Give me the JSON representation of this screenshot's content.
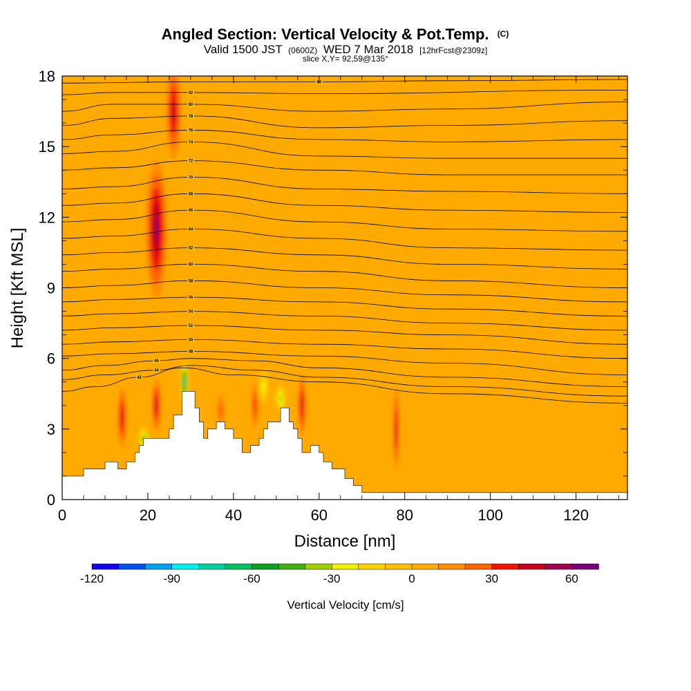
{
  "chart_data": {
    "type": "contour",
    "title": "Angled Section: Vertical Velocity & Pot.Temp.",
    "title_mark": "(C)",
    "subtitle_parts": [
      "Valid 1500 JST",
      "(0600Z)",
      "WED 7 Mar 2018",
      "[12hrFcst@2309z]"
    ],
    "slice_label": "slice X,Y= 92,59@135°",
    "xlabel": "Distance [nm]",
    "ylabel": "Height [Kft MSL]",
    "xlim": [
      0,
      132
    ],
    "ylim": [
      0,
      18
    ],
    "x_ticks": [
      0,
      20,
      40,
      60,
      80,
      100,
      120
    ],
    "y_ticks": [
      0,
      3,
      6,
      9,
      12,
      15,
      18
    ],
    "colorbar": {
      "label": "Vertical Velocity [cm/s]",
      "tick_values": [
        -120,
        -90,
        -60,
        -30,
        0,
        30,
        60
      ],
      "levels": [
        -120,
        -110,
        -100,
        -90,
        -80,
        -70,
        -60,
        -50,
        -40,
        -30,
        -20,
        -10,
        0,
        10,
        20,
        30,
        40,
        50,
        60,
        70
      ],
      "colors": [
        "#1400f0",
        "#0050f0",
        "#00a0f0",
        "#00f0f0",
        "#00d0a0",
        "#00c060",
        "#10a020",
        "#40b010",
        "#a0d000",
        "#f0f000",
        "#ffd200",
        "#ffbe00",
        "#ffaa00",
        "#ff8c00",
        "#ff6400",
        "#f01400",
        "#c8001e",
        "#a00050",
        "#780078"
      ]
    },
    "terrain": [
      [
        0,
        1
      ],
      [
        5,
        1
      ],
      [
        5,
        1.3
      ],
      [
        10,
        1.3
      ],
      [
        10,
        1.6
      ],
      [
        13,
        1.6
      ],
      [
        13,
        1.3
      ],
      [
        15,
        1.3
      ],
      [
        15,
        1.6
      ],
      [
        17,
        1.6
      ],
      [
        17,
        2
      ],
      [
        18,
        2
      ],
      [
        18,
        2.3
      ],
      [
        19,
        2.3
      ],
      [
        19,
        2.6
      ],
      [
        25,
        2.6
      ],
      [
        25,
        3
      ],
      [
        26,
        3
      ],
      [
        26,
        3.6
      ],
      [
        28,
        3.6
      ],
      [
        28,
        4.6
      ],
      [
        31,
        4.6
      ],
      [
        31,
        3.9
      ],
      [
        32,
        3.9
      ],
      [
        32,
        3.3
      ],
      [
        33,
        3.3
      ],
      [
        33,
        2.6
      ],
      [
        34,
        2.6
      ],
      [
        34,
        3
      ],
      [
        36,
        3
      ],
      [
        36,
        3.3
      ],
      [
        38,
        3.3
      ],
      [
        38,
        3
      ],
      [
        40,
        3
      ],
      [
        40,
        2.6
      ],
      [
        42,
        2.6
      ],
      [
        42,
        2
      ],
      [
        44,
        2
      ],
      [
        44,
        2.3
      ],
      [
        46,
        2.3
      ],
      [
        46,
        2.6
      ],
      [
        47,
        2.6
      ],
      [
        47,
        3
      ],
      [
        48,
        3
      ],
      [
        48,
        3.3
      ],
      [
        51,
        3.3
      ],
      [
        51,
        3.9
      ],
      [
        53,
        3.9
      ],
      [
        53,
        3.3
      ],
      [
        54,
        3.3
      ],
      [
        54,
        3
      ],
      [
        55,
        3
      ],
      [
        55,
        2.6
      ],
      [
        56,
        2.6
      ],
      [
        56,
        2
      ],
      [
        58,
        2
      ],
      [
        58,
        2.3
      ],
      [
        60,
        2.3
      ],
      [
        60,
        2
      ],
      [
        61,
        2
      ],
      [
        61,
        1.6
      ],
      [
        63,
        1.6
      ],
      [
        63,
        1.3
      ],
      [
        66,
        1.3
      ],
      [
        66,
        0.9
      ],
      [
        68,
        0.9
      ],
      [
        68,
        0.6
      ],
      [
        70,
        0.6
      ],
      [
        70,
        0.3
      ],
      [
        132,
        0.3
      ],
      [
        132,
        0
      ],
      [
        0,
        0
      ]
    ],
    "theta_contours": [
      {
        "label": "84",
        "points": [
          [
            0,
            17.7
          ],
          [
            30,
            17.75
          ],
          [
            60,
            17.75
          ],
          [
            90,
            17.8
          ],
          [
            132,
            17.85
          ]
        ]
      },
      {
        "label": "82",
        "points": [
          [
            0,
            17.2
          ],
          [
            12,
            17.3
          ],
          [
            30,
            17.3
          ],
          [
            60,
            17.25
          ],
          [
            132,
            17.4
          ]
        ]
      },
      {
        "label": "80",
        "points": [
          [
            0,
            16.5
          ],
          [
            12,
            16.8
          ],
          [
            30,
            16.8
          ],
          [
            60,
            16.5
          ],
          [
            90,
            16.6
          ],
          [
            132,
            16.9
          ]
        ]
      },
      {
        "label": "78",
        "points": [
          [
            0,
            15.9
          ],
          [
            12,
            16.2
          ],
          [
            30,
            16.3
          ],
          [
            60,
            15.8
          ],
          [
            90,
            15.9
          ],
          [
            132,
            16.1
          ]
        ]
      },
      {
        "label": "76",
        "points": [
          [
            0,
            15.3
          ],
          [
            12,
            15.5
          ],
          [
            30,
            15.7
          ],
          [
            60,
            15.3
          ],
          [
            90,
            15.2
          ],
          [
            132,
            15.3
          ]
        ]
      },
      {
        "label": "74",
        "points": [
          [
            0,
            14.7
          ],
          [
            12,
            14.8
          ],
          [
            30,
            15.2
          ],
          [
            60,
            14.6
          ],
          [
            90,
            14.5
          ],
          [
            132,
            14.5
          ]
        ]
      },
      {
        "label": "72",
        "points": [
          [
            0,
            14.0
          ],
          [
            12,
            14.1
          ],
          [
            30,
            14.4
          ],
          [
            60,
            14.0
          ],
          [
            90,
            13.8
          ],
          [
            132,
            13.8
          ]
        ]
      },
      {
        "label": "70",
        "points": [
          [
            0,
            13.2
          ],
          [
            12,
            13.3
          ],
          [
            30,
            13.7
          ],
          [
            60,
            13.2
          ],
          [
            90,
            13.1
          ],
          [
            132,
            13.0
          ]
        ]
      },
      {
        "label": "68",
        "points": [
          [
            0,
            12.5
          ],
          [
            12,
            12.6
          ],
          [
            30,
            13.0
          ],
          [
            60,
            12.5
          ],
          [
            90,
            12.3
          ],
          [
            132,
            12.2
          ]
        ]
      },
      {
        "label": "66",
        "points": [
          [
            0,
            11.8
          ],
          [
            12,
            11.9
          ],
          [
            30,
            12.3
          ],
          [
            60,
            11.8
          ],
          [
            90,
            11.5
          ],
          [
            132,
            11.4
          ]
        ]
      },
      {
        "label": "64",
        "points": [
          [
            0,
            11.1
          ],
          [
            12,
            11.2
          ],
          [
            30,
            11.5
          ],
          [
            60,
            11.1
          ],
          [
            90,
            10.7
          ],
          [
            132,
            10.6
          ]
        ]
      },
      {
        "label": "62",
        "points": [
          [
            0,
            10.4
          ],
          [
            12,
            10.5
          ],
          [
            30,
            10.7
          ],
          [
            60,
            10.4
          ],
          [
            90,
            10.0
          ],
          [
            132,
            9.8
          ]
        ]
      },
      {
        "label": "60",
        "points": [
          [
            0,
            9.7
          ],
          [
            12,
            9.8
          ],
          [
            30,
            10.0
          ],
          [
            60,
            9.7
          ],
          [
            90,
            9.3
          ],
          [
            132,
            9.0
          ]
        ]
      },
      {
        "label": "58",
        "points": [
          [
            0,
            9.0
          ],
          [
            12,
            9.1
          ],
          [
            30,
            9.3
          ],
          [
            60,
            9.0
          ],
          [
            90,
            8.7
          ],
          [
            132,
            8.4
          ]
        ]
      },
      {
        "label": "56",
        "points": [
          [
            0,
            8.4
          ],
          [
            12,
            8.5
          ],
          [
            30,
            8.6
          ],
          [
            60,
            8.4
          ],
          [
            90,
            8.1
          ],
          [
            132,
            7.8
          ]
        ]
      },
      {
        "label": "54",
        "points": [
          [
            0,
            7.8
          ],
          [
            12,
            7.9
          ],
          [
            30,
            8.0
          ],
          [
            60,
            7.8
          ],
          [
            90,
            7.5
          ],
          [
            132,
            7.2
          ]
        ]
      },
      {
        "label": "52",
        "points": [
          [
            0,
            7.2
          ],
          [
            12,
            7.3
          ],
          [
            30,
            7.4
          ],
          [
            60,
            7.2
          ],
          [
            90,
            7.0
          ],
          [
            132,
            6.6
          ]
        ]
      },
      {
        "label": "50",
        "points": [
          [
            0,
            6.6
          ],
          [
            12,
            6.7
          ],
          [
            30,
            6.8
          ],
          [
            60,
            6.6
          ],
          [
            90,
            6.4
          ],
          [
            132,
            6.0
          ]
        ]
      },
      {
        "label": "48",
        "points": [
          [
            0,
            6.1
          ],
          [
            12,
            6.2
          ],
          [
            30,
            6.3
          ],
          [
            60,
            6.1
          ],
          [
            90,
            5.8
          ],
          [
            132,
            5.3
          ]
        ]
      },
      {
        "label": "46",
        "points": [
          [
            0,
            5.5
          ],
          [
            10,
            5.7
          ],
          [
            22,
            5.9
          ],
          [
            30,
            6.0
          ],
          [
            45,
            5.9
          ],
          [
            60,
            5.6
          ],
          [
            90,
            5.2
          ],
          [
            132,
            4.8
          ]
        ]
      },
      {
        "label": "44",
        "points": [
          [
            0,
            5.1
          ],
          [
            10,
            5.3
          ],
          [
            22,
            5.5
          ],
          [
            30,
            5.7
          ],
          [
            45,
            5.5
          ],
          [
            60,
            5.2
          ],
          [
            90,
            4.8
          ],
          [
            132,
            4.4
          ]
        ]
      },
      {
        "label": "42",
        "points": [
          [
            0,
            4.6
          ],
          [
            8,
            4.8
          ],
          [
            18,
            5.2
          ],
          [
            28,
            5.6
          ],
          [
            40,
            5.3
          ],
          [
            60,
            5.0
          ],
          [
            90,
            4.5
          ],
          [
            132,
            4.1
          ]
        ]
      }
    ],
    "w_cells": [
      {
        "x": 22,
        "y": 11.5,
        "rx": 3,
        "ry": 3.5,
        "w": 60
      },
      {
        "x": 26,
        "y": 16.5,
        "rx": 2.2,
        "ry": 2.5,
        "w": 50
      },
      {
        "x": 14,
        "y": 3.5,
        "rx": 1.3,
        "ry": 1.6,
        "w": 50
      },
      {
        "x": 22,
        "y": 4.0,
        "rx": 1.4,
        "ry": 1.4,
        "w": 45
      },
      {
        "x": 56,
        "y": 4.0,
        "rx": 1.2,
        "ry": 1.6,
        "w": 50
      },
      {
        "x": 78,
        "y": 3.0,
        "rx": 0.9,
        "ry": 2.2,
        "w": 45
      },
      {
        "x": 45,
        "y": 4.0,
        "rx": 1.1,
        "ry": 1.3,
        "w": 35
      },
      {
        "x": 37,
        "y": 3.8,
        "rx": 1.4,
        "ry": 1.0,
        "w": 25
      },
      {
        "x": 19,
        "y": 2.6,
        "rx": 1.2,
        "ry": 0.5,
        "w": -50
      },
      {
        "x": 28.5,
        "y": 5.0,
        "rx": 1.0,
        "ry": 0.9,
        "w": -80
      },
      {
        "x": 51,
        "y": 4.3,
        "rx": 1.3,
        "ry": 0.6,
        "w": -40
      },
      {
        "x": 47,
        "y": 4.8,
        "rx": 1.2,
        "ry": 0.7,
        "w": -25
      }
    ]
  }
}
